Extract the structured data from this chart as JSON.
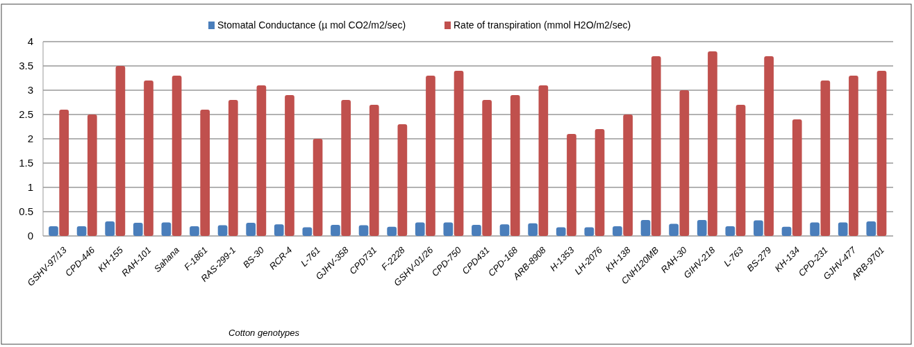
{
  "chart_data": {
    "type": "bar",
    "xlabel": "Cotton genotypes",
    "categories": [
      "GSHV-97/13",
      "CPD-446",
      "KH-155",
      "RAH-101",
      "Sahana",
      "F-1861",
      "RAS-299-1",
      "BS-30",
      "RCR-4",
      "L-761",
      "GJHV-358",
      "CPD731",
      "F-2228",
      "GSHV-01/26",
      "CPD-750",
      "CPD431",
      "CPD-168",
      "ARB-8908",
      "H-1353",
      "LH-2076",
      "KH-138",
      "CNH120MB",
      "RAH-30",
      "GIHV-218",
      "L-763",
      "BS-279",
      "KH-134",
      "CPD-231",
      "GJHV-477",
      "ARB-9701"
    ],
    "series": [
      {
        "name": "Stomatal Conductance (µ mol CO2/m2/sec)",
        "color": "#4a7ebb",
        "values": [
          0.2,
          0.2,
          0.3,
          0.27,
          0.28,
          0.2,
          0.22,
          0.27,
          0.24,
          0.18,
          0.23,
          0.22,
          0.19,
          0.28,
          0.28,
          0.23,
          0.24,
          0.26,
          0.18,
          0.18,
          0.2,
          0.33,
          0.25,
          0.33,
          0.2,
          0.32,
          0.19,
          0.28,
          0.28,
          0.3
        ]
      },
      {
        "name": "Rate of transpiration (mmol H2O/m2/sec)",
        "color": "#c0504d",
        "values": [
          2.6,
          2.5,
          3.5,
          3.2,
          3.3,
          2.6,
          2.8,
          3.1,
          2.9,
          2.0,
          2.8,
          2.7,
          2.3,
          3.3,
          3.4,
          2.8,
          2.9,
          3.1,
          2.1,
          2.2,
          2.5,
          3.7,
          3.0,
          3.8,
          2.7,
          3.7,
          2.4,
          3.2,
          3.3,
          3.4
        ]
      }
    ],
    "ylim": [
      0,
      4
    ],
    "yticks": [
      0,
      0.5,
      1,
      1.5,
      2,
      2.5,
      3,
      3.5,
      4
    ],
    "grid": "y",
    "legend": "top"
  }
}
